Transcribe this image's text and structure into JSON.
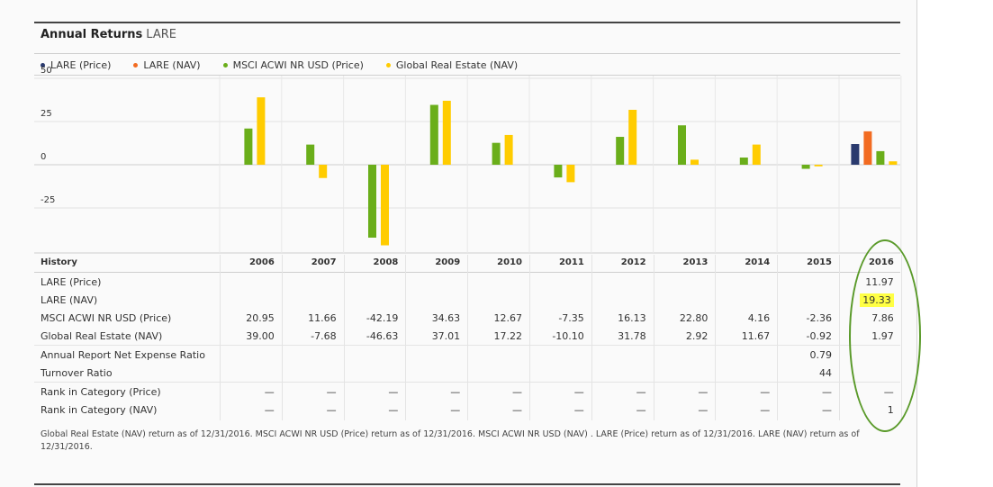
{
  "header": {
    "title": "Annual Returns",
    "ticker": "LARE"
  },
  "legend": [
    {
      "label": "LARE (Price)",
      "color": "#2a3a6e"
    },
    {
      "label": "LARE (NAV)",
      "color": "#f26b21"
    },
    {
      "label": "MSCI ACWI NR USD (Price)",
      "color": "#6aae1a"
    },
    {
      "label": "Global Real Estate (NAV)",
      "color": "#ffcc00"
    }
  ],
  "chart_data": {
    "type": "bar",
    "title": "Annual Returns",
    "categories": [
      "2006",
      "2007",
      "2008",
      "2009",
      "2010",
      "2011",
      "2012",
      "2013",
      "2014",
      "2015",
      "2016"
    ],
    "yticks": [
      "50",
      "25",
      "0",
      "-25"
    ],
    "ylim": [
      -50,
      50
    ],
    "series": [
      {
        "name": "LARE (Price)",
        "color": "#2a3a6e",
        "values": [
          null,
          null,
          null,
          null,
          null,
          null,
          null,
          null,
          null,
          null,
          11.97
        ]
      },
      {
        "name": "LARE (NAV)",
        "color": "#f26b21",
        "values": [
          null,
          null,
          null,
          null,
          null,
          null,
          null,
          null,
          null,
          null,
          19.33
        ]
      },
      {
        "name": "MSCI ACWI NR USD (Price)",
        "color": "#6aae1a",
        "values": [
          20.95,
          11.66,
          -42.19,
          34.63,
          12.67,
          -7.35,
          16.13,
          22.8,
          4.16,
          -2.36,
          7.86
        ]
      },
      {
        "name": "Global Real Estate (NAV)",
        "color": "#ffcc00",
        "values": [
          39.0,
          -7.68,
          -46.63,
          37.01,
          17.22,
          -10.1,
          31.78,
          2.92,
          11.67,
          -0.92,
          1.97
        ]
      }
    ]
  },
  "table": {
    "history_label": "History",
    "years": [
      "2006",
      "2007",
      "2008",
      "2009",
      "2010",
      "2011",
      "2012",
      "2013",
      "2014",
      "2015",
      "2016"
    ],
    "rows": [
      {
        "label": "LARE (Price)",
        "cells": [
          "",
          "",
          "",
          "",
          "",
          "",
          "",
          "",
          "",
          "",
          "11.97"
        ]
      },
      {
        "label": "LARE (NAV)",
        "cells": [
          "",
          "",
          "",
          "",
          "",
          "",
          "",
          "",
          "",
          "",
          "19.33"
        ]
      },
      {
        "label": "MSCI ACWI NR USD (Price)",
        "cells": [
          "20.95",
          "11.66",
          "-42.19",
          "34.63",
          "12.67",
          "-7.35",
          "16.13",
          "22.80",
          "4.16",
          "-2.36",
          "7.86"
        ]
      },
      {
        "label": "Global Real Estate (NAV)",
        "cells": [
          "39.00",
          "-7.68",
          "-46.63",
          "37.01",
          "17.22",
          "-10.10",
          "31.78",
          "2.92",
          "11.67",
          "-0.92",
          "1.97"
        ]
      },
      {
        "label": "Annual Report Net Expense Ratio",
        "cells": [
          "",
          "",
          "",
          "",
          "",
          "",
          "",
          "",
          "",
          "0.79",
          ""
        ]
      },
      {
        "label": "Turnover Ratio",
        "cells": [
          "",
          "",
          "",
          "",
          "",
          "",
          "",
          "",
          "",
          "44",
          ""
        ]
      },
      {
        "label": "Rank in Category (Price)",
        "cells": [
          "—",
          "—",
          "—",
          "—",
          "—",
          "—",
          "—",
          "—",
          "—",
          "—",
          "—"
        ]
      },
      {
        "label": "Rank in Category (NAV)",
        "cells": [
          "—",
          "—",
          "—",
          "—",
          "—",
          "—",
          "—",
          "—",
          "—",
          "—",
          "1"
        ]
      }
    ]
  },
  "footnote": "Global Real Estate (NAV) return as of 12/31/2016.  MSCI ACWI NR USD (Price) return as of 12/31/2016.  MSCI ACWI NR USD (NAV) .  LARE (Price) return as of 12/31/2016.  LARE (NAV) return as of 12/31/2016."
}
